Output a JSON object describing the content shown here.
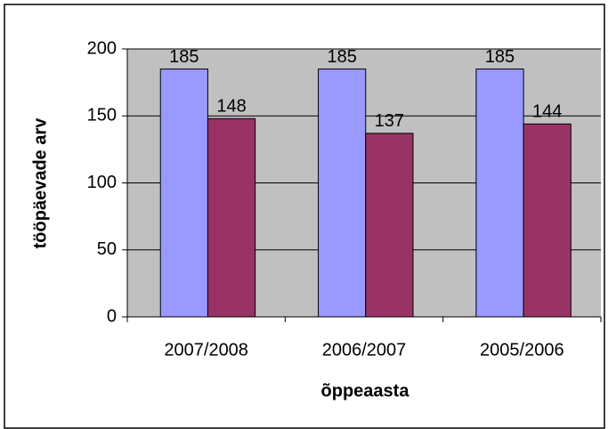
{
  "chart_data": {
    "type": "bar",
    "x_label": "õppeaasta",
    "y_label": "tööpäevade arv",
    "categories": [
      "2007/2008",
      "2006/2007",
      "2005/2006"
    ],
    "series": [
      {
        "color": "#9999ff",
        "values": [
          185,
          185,
          185
        ]
      },
      {
        "color": "#993366",
        "values": [
          148,
          137,
          144
        ]
      }
    ],
    "ylim": [
      0,
      200
    ],
    "yticks": [
      0,
      50,
      100,
      150,
      200
    ],
    "grid": true,
    "plot_background": "#c0c0c0"
  }
}
